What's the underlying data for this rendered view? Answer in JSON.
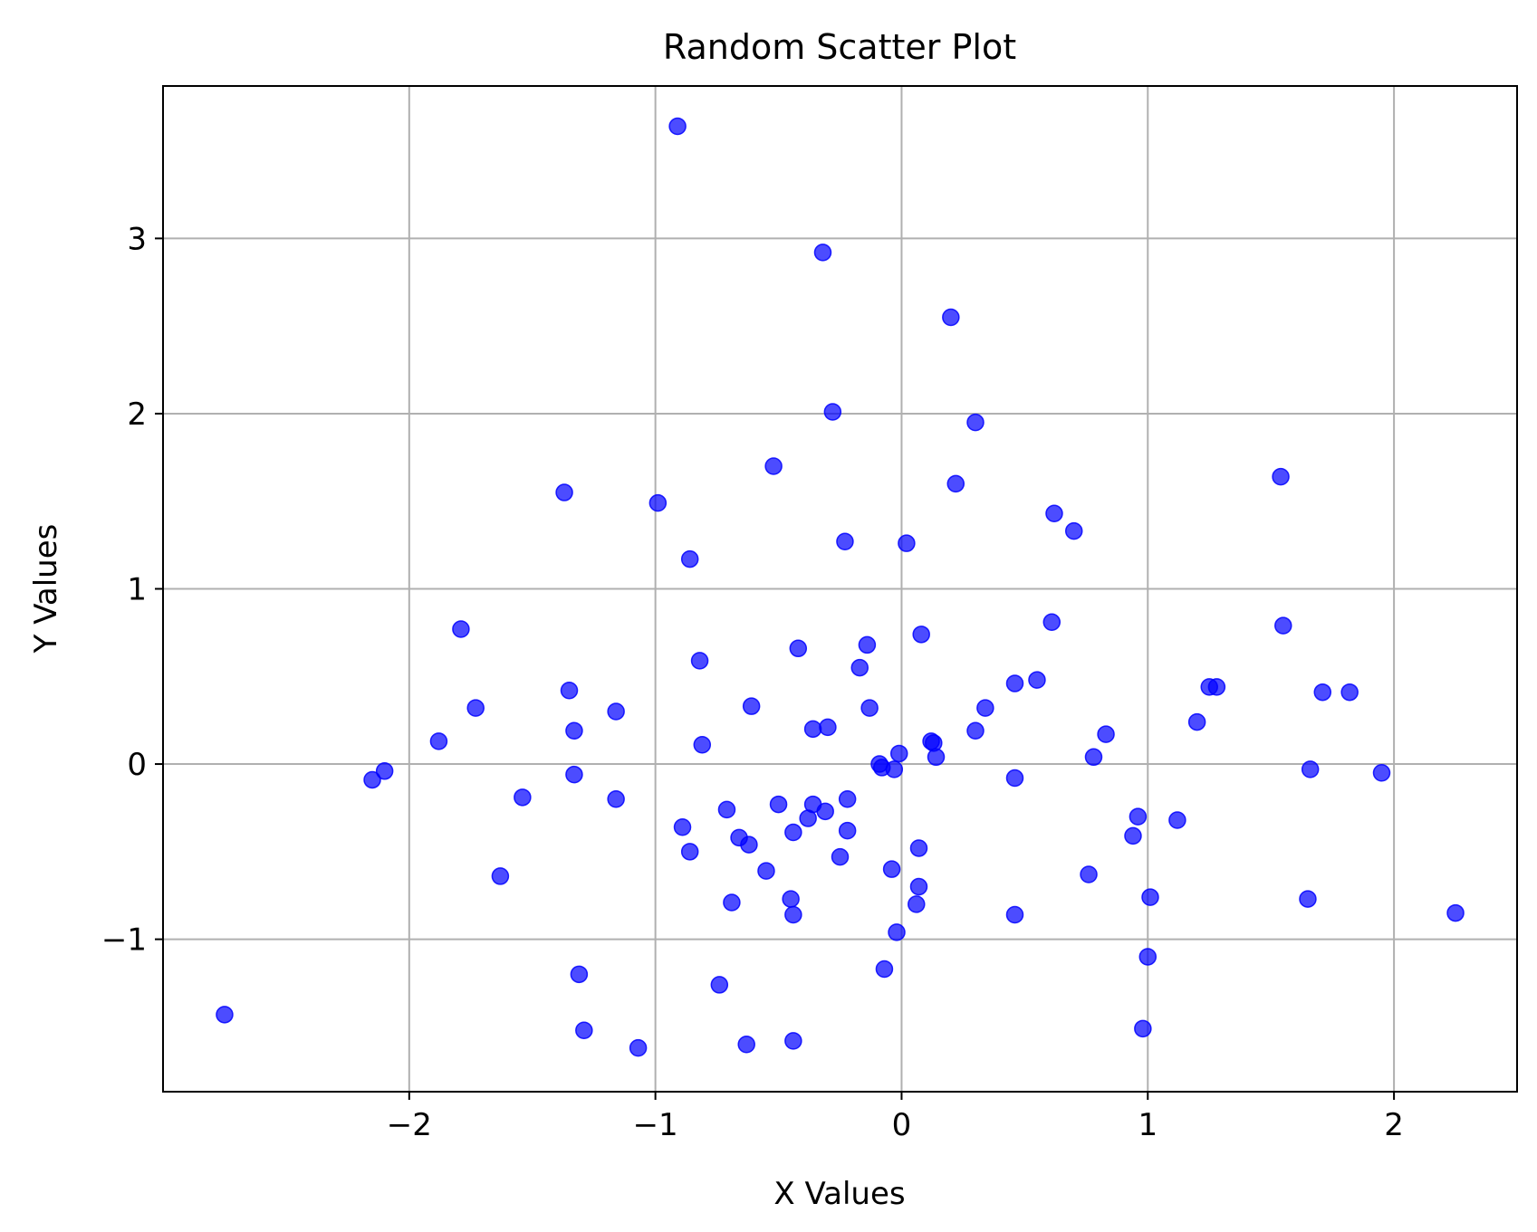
{
  "chart_data": {
    "type": "scatter",
    "title": "Random Scatter Plot",
    "xlabel": "X Values",
    "ylabel": "Y Values",
    "xlim": [
      -3.0,
      2.5
    ],
    "ylim": [
      -1.87,
      3.87
    ],
    "xticks": [
      -2,
      -1,
      0,
      1,
      2
    ],
    "yticks": [
      -1,
      0,
      1,
      2,
      3
    ],
    "xtick_labels": [
      "−2",
      "−1",
      "0",
      "1",
      "2"
    ],
    "ytick_labels": [
      "−1",
      "0",
      "1",
      "2",
      "3"
    ],
    "grid": true,
    "marker_color": "#0000ff",
    "marker_opacity": 0.7,
    "points": [
      {
        "x": -2.75,
        "y": -1.43
      },
      {
        "x": -2.15,
        "y": -0.09
      },
      {
        "x": -2.1,
        "y": -0.04
      },
      {
        "x": -1.88,
        "y": 0.13
      },
      {
        "x": -1.79,
        "y": 0.77
      },
      {
        "x": -1.73,
        "y": 0.32
      },
      {
        "x": -1.63,
        "y": -0.64
      },
      {
        "x": -1.54,
        "y": -0.19
      },
      {
        "x": -1.37,
        "y": 1.55
      },
      {
        "x": -1.35,
        "y": 0.42
      },
      {
        "x": -1.33,
        "y": 0.19
      },
      {
        "x": -1.33,
        "y": -0.06
      },
      {
        "x": -1.31,
        "y": -1.2
      },
      {
        "x": -1.29,
        "y": -1.52
      },
      {
        "x": -1.16,
        "y": 0.3
      },
      {
        "x": -1.16,
        "y": -0.2
      },
      {
        "x": -1.07,
        "y": -1.62
      },
      {
        "x": -0.99,
        "y": 1.49
      },
      {
        "x": -0.91,
        "y": 3.64
      },
      {
        "x": -0.89,
        "y": -0.36
      },
      {
        "x": -0.86,
        "y": 1.17
      },
      {
        "x": -0.86,
        "y": -0.5
      },
      {
        "x": -0.82,
        "y": 0.59
      },
      {
        "x": -0.81,
        "y": 0.11
      },
      {
        "x": -0.74,
        "y": -1.26
      },
      {
        "x": -0.71,
        "y": -0.26
      },
      {
        "x": -0.69,
        "y": -0.79
      },
      {
        "x": -0.66,
        "y": -0.42
      },
      {
        "x": -0.63,
        "y": -1.6
      },
      {
        "x": -0.62,
        "y": -0.46
      },
      {
        "x": -0.61,
        "y": 0.33
      },
      {
        "x": -0.55,
        "y": -0.61
      },
      {
        "x": -0.52,
        "y": 1.7
      },
      {
        "x": -0.5,
        "y": -0.23
      },
      {
        "x": -0.45,
        "y": -0.77
      },
      {
        "x": -0.44,
        "y": -0.39
      },
      {
        "x": -0.44,
        "y": -0.86
      },
      {
        "x": -0.44,
        "y": -1.58
      },
      {
        "x": -0.42,
        "y": 0.66
      },
      {
        "x": -0.38,
        "y": -0.31
      },
      {
        "x": -0.36,
        "y": 0.2
      },
      {
        "x": -0.36,
        "y": -0.23
      },
      {
        "x": -0.32,
        "y": 2.92
      },
      {
        "x": -0.31,
        "y": -0.27
      },
      {
        "x": -0.3,
        "y": 0.21
      },
      {
        "x": -0.28,
        "y": 2.01
      },
      {
        "x": -0.25,
        "y": -0.53
      },
      {
        "x": -0.23,
        "y": 1.27
      },
      {
        "x": -0.22,
        "y": -0.2
      },
      {
        "x": -0.22,
        "y": -0.38
      },
      {
        "x": -0.17,
        "y": 0.55
      },
      {
        "x": -0.14,
        "y": 0.68
      },
      {
        "x": -0.13,
        "y": 0.32
      },
      {
        "x": -0.09,
        "y": 0.0
      },
      {
        "x": -0.08,
        "y": -0.02
      },
      {
        "x": -0.07,
        "y": -1.17
      },
      {
        "x": -0.04,
        "y": -0.6
      },
      {
        "x": -0.03,
        "y": -0.03
      },
      {
        "x": -0.02,
        "y": -0.96
      },
      {
        "x": -0.01,
        "y": 0.06
      },
      {
        "x": 0.02,
        "y": 1.26
      },
      {
        "x": 0.06,
        "y": -0.8
      },
      {
        "x": 0.07,
        "y": -0.7
      },
      {
        "x": 0.07,
        "y": -0.48
      },
      {
        "x": 0.08,
        "y": 0.74
      },
      {
        "x": 0.12,
        "y": 0.13
      },
      {
        "x": 0.13,
        "y": 0.12
      },
      {
        "x": 0.14,
        "y": 0.04
      },
      {
        "x": 0.2,
        "y": 2.55
      },
      {
        "x": 0.22,
        "y": 1.6
      },
      {
        "x": 0.3,
        "y": 1.95
      },
      {
        "x": 0.3,
        "y": 0.19
      },
      {
        "x": 0.34,
        "y": 0.32
      },
      {
        "x": 0.46,
        "y": 0.46
      },
      {
        "x": 0.46,
        "y": -0.08
      },
      {
        "x": 0.46,
        "y": -0.86
      },
      {
        "x": 0.55,
        "y": 0.48
      },
      {
        "x": 0.61,
        "y": 0.81
      },
      {
        "x": 0.62,
        "y": 1.43
      },
      {
        "x": 0.7,
        "y": 1.33
      },
      {
        "x": 0.76,
        "y": -0.63
      },
      {
        "x": 0.78,
        "y": 0.04
      },
      {
        "x": 0.83,
        "y": 0.17
      },
      {
        "x": 0.94,
        "y": -0.41
      },
      {
        "x": 0.96,
        "y": -0.3
      },
      {
        "x": 0.98,
        "y": -1.51
      },
      {
        "x": 1.0,
        "y": -1.1
      },
      {
        "x": 1.01,
        "y": -0.76
      },
      {
        "x": 1.12,
        "y": -0.32
      },
      {
        "x": 1.2,
        "y": 0.24
      },
      {
        "x": 1.25,
        "y": 0.44
      },
      {
        "x": 1.28,
        "y": 0.44
      },
      {
        "x": 1.54,
        "y": 1.64
      },
      {
        "x": 1.55,
        "y": 0.79
      },
      {
        "x": 1.65,
        "y": -0.77
      },
      {
        "x": 1.66,
        "y": -0.03
      },
      {
        "x": 1.71,
        "y": 0.41
      },
      {
        "x": 1.82,
        "y": 0.41
      },
      {
        "x": 1.95,
        "y": -0.05
      },
      {
        "x": 2.25,
        "y": -0.85
      }
    ]
  }
}
